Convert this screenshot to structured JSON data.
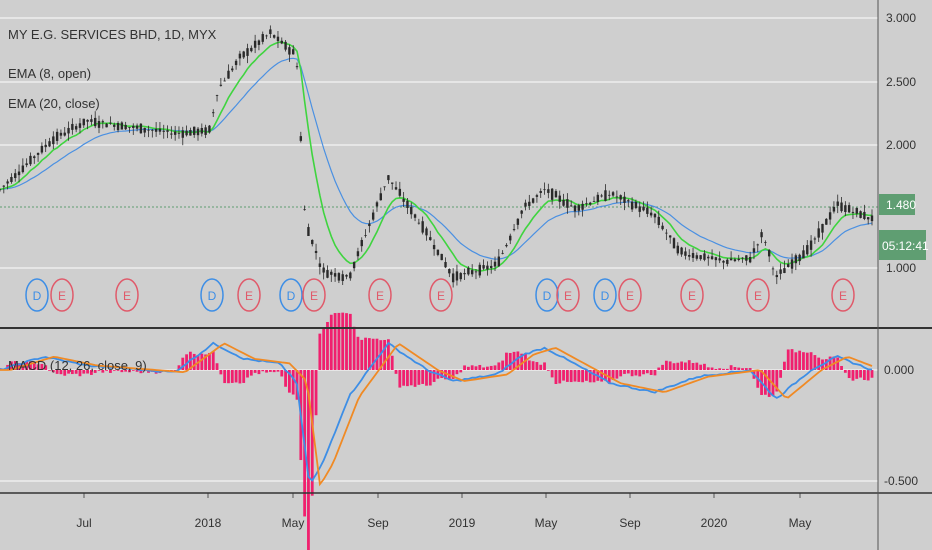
{
  "header": {
    "symbol": "MY E.G. SERVICES BHD, 1D, MYX",
    "ema1": "EMA (8, open)",
    "ema2": "EMA (20, close)"
  },
  "macd_label": "MACD (12, 26, close, 9)",
  "price_badge": "1.480",
  "timer_badge": "05:12:41",
  "colors": {
    "background": "#cfcfcf",
    "candle": "#2a2a2a",
    "ema_green": "#3fd43f",
    "ema_blue": "#4a90e2",
    "macd_blue": "#3d8ee6",
    "signal_orange": "#f08a24",
    "hist_pink": "#f0206e",
    "badge_green": "#5f9e72",
    "event_d": "#3d8ee6",
    "event_e": "#e05a6a"
  },
  "chart_data": [
    {
      "type": "candlestick",
      "title": "MY E.G. SERVICES BHD, 1D, MYX",
      "y_ticks": [
        "3.000",
        "2.500",
        "2.000",
        "1.480",
        "1.000"
      ],
      "ylim": [
        0.7,
        3.05
      ],
      "x_ticks": [
        "Jul",
        "2018",
        "May",
        "Sep",
        "2019",
        "May",
        "Sep",
        "2020",
        "May"
      ],
      "current_price": 1.48,
      "price_path": [
        {
          "t": 0,
          "v": 1.65
        },
        {
          "t": 0.06,
          "v": 2.05
        },
        {
          "t": 0.1,
          "v": 2.2
        },
        {
          "t": 0.2,
          "v": 2.1
        },
        {
          "t": 0.24,
          "v": 2.12
        },
        {
          "t": 0.25,
          "v": 2.45
        },
        {
          "t": 0.275,
          "v": 2.7
        },
        {
          "t": 0.31,
          "v": 2.9
        },
        {
          "t": 0.34,
          "v": 2.72
        },
        {
          "t": 0.35,
          "v": 1.4
        },
        {
          "t": 0.37,
          "v": 1.0
        },
        {
          "t": 0.4,
          "v": 0.95
        },
        {
          "t": 0.445,
          "v": 1.75
        },
        {
          "t": 0.49,
          "v": 1.3
        },
        {
          "t": 0.52,
          "v": 0.95
        },
        {
          "t": 0.57,
          "v": 1.05
        },
        {
          "t": 0.6,
          "v": 1.5
        },
        {
          "t": 0.625,
          "v": 1.65
        },
        {
          "t": 0.66,
          "v": 1.5
        },
        {
          "t": 0.7,
          "v": 1.62
        },
        {
          "t": 0.75,
          "v": 1.45
        },
        {
          "t": 0.78,
          "v": 1.15
        },
        {
          "t": 0.83,
          "v": 1.08
        },
        {
          "t": 0.86,
          "v": 1.1
        },
        {
          "t": 0.875,
          "v": 1.3
        },
        {
          "t": 0.89,
          "v": 0.95
        },
        {
          "t": 0.93,
          "v": 1.2
        },
        {
          "t": 0.96,
          "v": 1.53
        },
        {
          "t": 1.0,
          "v": 1.42
        }
      ],
      "series": [
        {
          "name": "EMA (8, open)"
        },
        {
          "name": "EMA (20, close)"
        }
      ],
      "events": [
        "D",
        "E",
        "E",
        "D",
        "E",
        "D",
        "E",
        "E",
        "E",
        "D",
        "E",
        "D",
        "E",
        "E",
        "E",
        "E"
      ],
      "grid": true
    },
    {
      "type": "line",
      "title": "MACD (12, 26, close, 9)",
      "y_ticks": [
        "0.000",
        "-0.500"
      ],
      "ylim": [
        -0.55,
        0.25
      ],
      "macd_path": [
        {
          "t": 0,
          "v": 0.0
        },
        {
          "t": 0.05,
          "v": 0.06
        },
        {
          "t": 0.1,
          "v": 0.02
        },
        {
          "t": 0.2,
          "v": -0.01
        },
        {
          "t": 0.245,
          "v": 0.12
        },
        {
          "t": 0.28,
          "v": 0.05
        },
        {
          "t": 0.32,
          "v": 0.03
        },
        {
          "t": 0.34,
          "v": -0.05
        },
        {
          "t": 0.355,
          "v": -0.52
        },
        {
          "t": 0.37,
          "v": -0.42
        },
        {
          "t": 0.4,
          "v": -0.12
        },
        {
          "t": 0.445,
          "v": 0.12
        },
        {
          "t": 0.49,
          "v": 0.0
        },
        {
          "t": 0.52,
          "v": -0.05
        },
        {
          "t": 0.57,
          "v": -0.02
        },
        {
          "t": 0.6,
          "v": 0.07
        },
        {
          "t": 0.625,
          "v": 0.1
        },
        {
          "t": 0.7,
          "v": -0.06
        },
        {
          "t": 0.75,
          "v": -0.1
        },
        {
          "t": 0.8,
          "v": -0.03
        },
        {
          "t": 0.86,
          "v": 0.0
        },
        {
          "t": 0.89,
          "v": -0.13
        },
        {
          "t": 0.93,
          "v": 0.0
        },
        {
          "t": 0.96,
          "v": 0.06
        },
        {
          "t": 1.0,
          "v": 0.0
        }
      ],
      "signal_lag": 0.012,
      "series": [
        {
          "name": "MACD"
        },
        {
          "name": "Signal"
        }
      ]
    }
  ]
}
